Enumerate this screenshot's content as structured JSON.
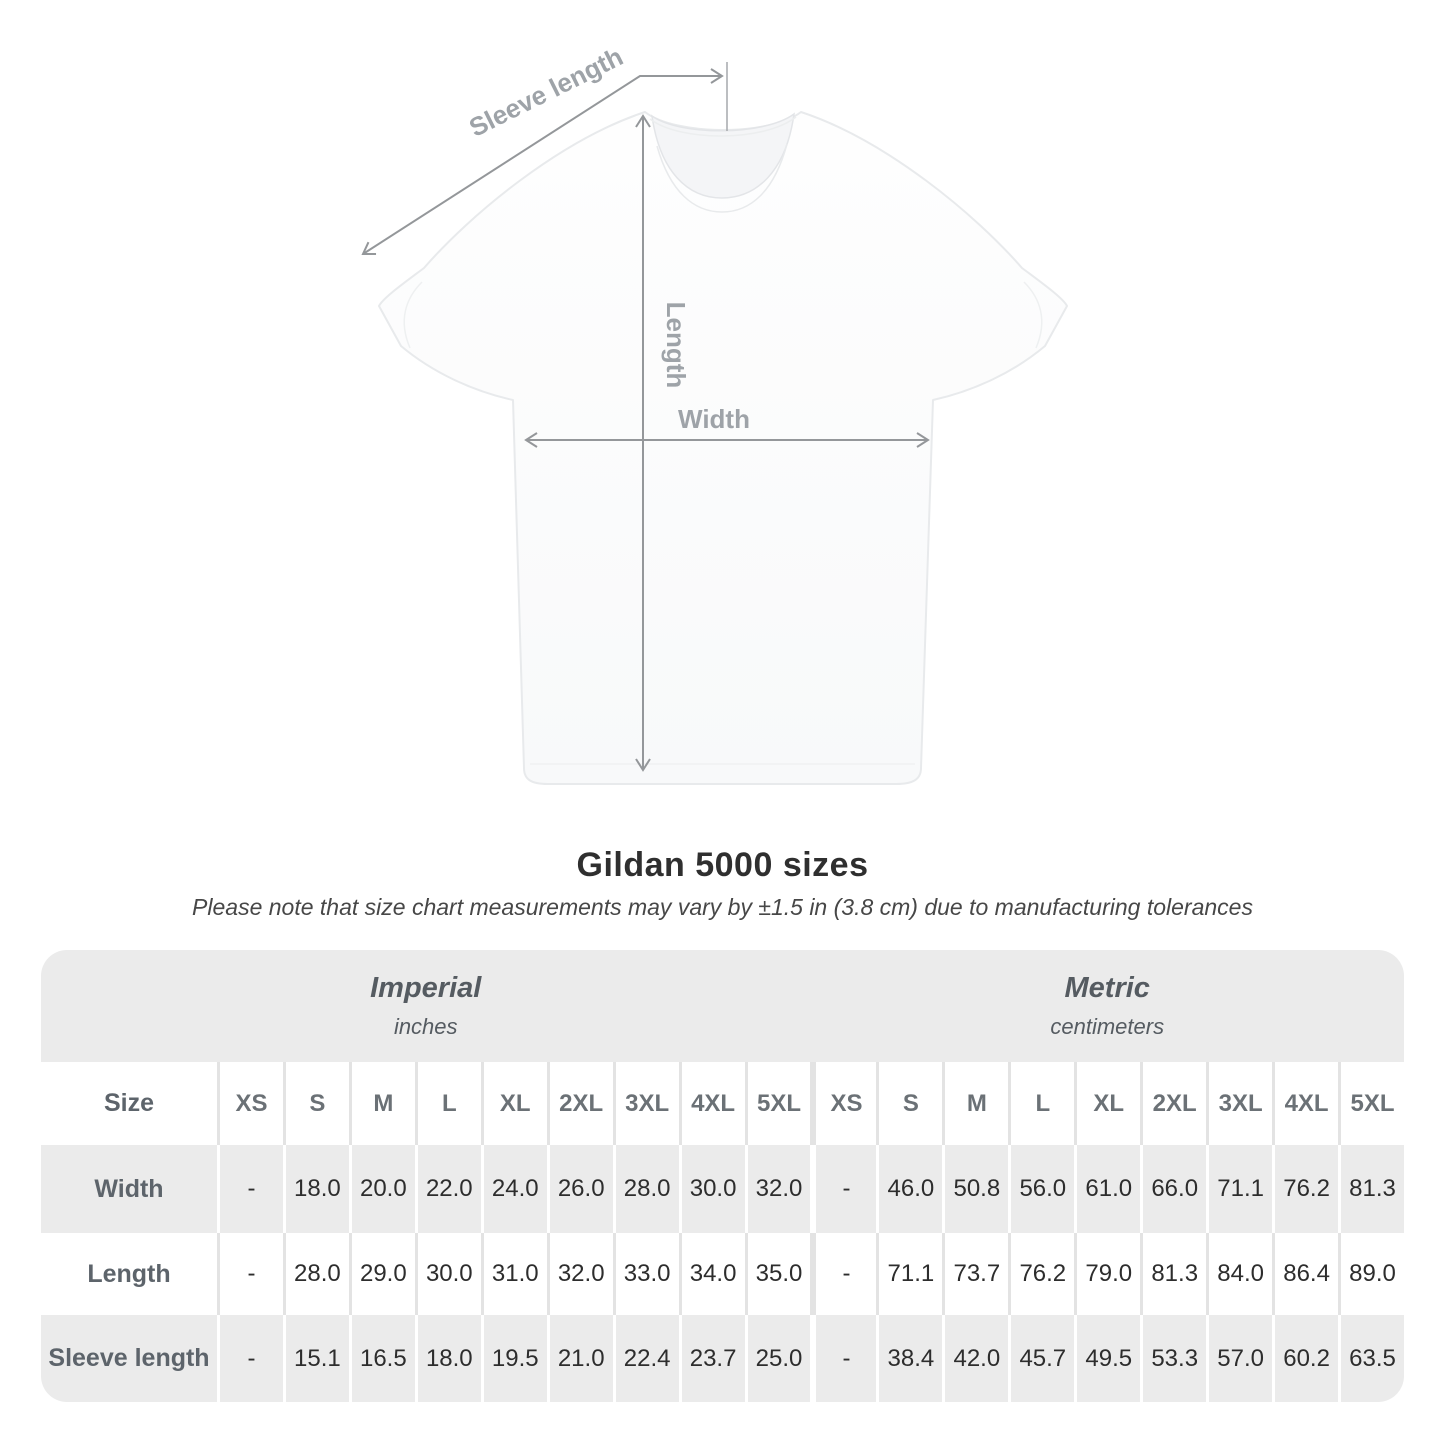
{
  "title": "Gildan 5000 sizes",
  "subtitle": "Please note that size chart measurements may vary by ±1.5 in (3.8 cm) due to manufacturing tolerances",
  "diagram": {
    "sleeve_label": "Sleeve length",
    "length_label": "Length",
    "width_label": "Width"
  },
  "table": {
    "size_label": "Size",
    "groups": [
      {
        "name": "Imperial",
        "unit": "inches"
      },
      {
        "name": "Metric",
        "unit": "centimeters"
      }
    ],
    "sizes": [
      "XS",
      "S",
      "M",
      "L",
      "XL",
      "2XL",
      "3XL",
      "4XL",
      "5XL"
    ],
    "rows": [
      {
        "label": "Width",
        "imperial": [
          "-",
          "18.0",
          "20.0",
          "22.0",
          "24.0",
          "26.0",
          "28.0",
          "30.0",
          "32.0"
        ],
        "metric": [
          "-",
          "46.0",
          "50.8",
          "56.0",
          "61.0",
          "66.0",
          "71.1",
          "76.2",
          "81.3"
        ]
      },
      {
        "label": "Length",
        "imperial": [
          "-",
          "28.0",
          "29.0",
          "30.0",
          "31.0",
          "32.0",
          "33.0",
          "34.0",
          "35.0"
        ],
        "metric": [
          "-",
          "71.1",
          "73.7",
          "76.2",
          "79.0",
          "81.3",
          "84.0",
          "86.4",
          "89.0"
        ]
      },
      {
        "label": "Sleeve length",
        "imperial": [
          "-",
          "15.1",
          "16.5",
          "18.0",
          "19.5",
          "21.0",
          "22.4",
          "23.7",
          "25.0"
        ],
        "metric": [
          "-",
          "38.4",
          "42.0",
          "45.7",
          "49.5",
          "53.3",
          "57.0",
          "60.2",
          "63.5"
        ]
      }
    ]
  },
  "colors": {
    "row_gray": "#ebebeb",
    "separator_gray": "#e3e3e3",
    "header_text": "#6b7176",
    "value_text": "#2d2d2d",
    "arrow_gray": "#94979a",
    "diagram_label_gray": "#9ea3a8",
    "title_text": "#2f2f2f"
  }
}
